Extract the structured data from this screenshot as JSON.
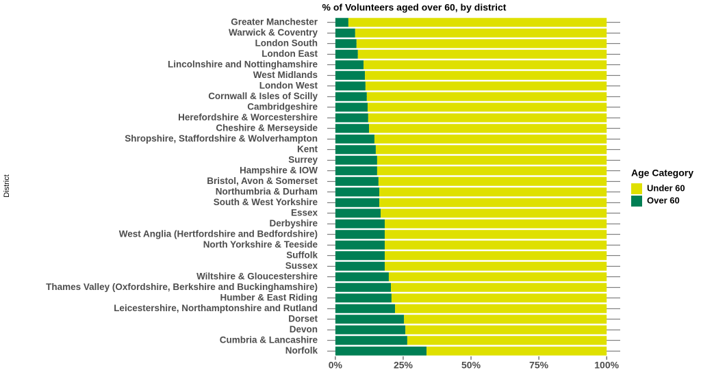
{
  "chart_data": {
    "type": "bar",
    "orientation": "horizontal",
    "stacked": true,
    "title": "% of Volunteers aged over 60, by district",
    "y_label": "District",
    "legend_title": "Age Category",
    "categories": [
      "Greater Manchester",
      "Warwick & Coventry",
      "London South",
      "London East",
      "Lincolnshire and Nottinghamshire",
      "West Midlands",
      "London West",
      "Cornwall & Isles of Scilly",
      "Cambridgeshire",
      "Herefordshire & Worcestershire",
      "Cheshire & Merseyside",
      "Shropshire, Staffordshire & Wolverhampton",
      "Kent",
      "Surrey",
      "Hampshire & IOW",
      "Bristol, Avon & Somerset",
      "Northumbria & Durham",
      "South & West Yorkshire",
      "Essex",
      "Derbyshire",
      "West Anglia (Hertfordshire and Bedfordshire)",
      "North Yorkshire & Teeside",
      "Suffolk",
      "Sussex",
      "Wiltshire & Gloucestershire",
      "Thames Valley (Oxfordshire, Berkshire and Buckinghamshire)",
      "Humber & East Riding",
      "Leicestershire, Northamptonshire and Rutland",
      "Dorset",
      "Devon",
      "Cumbria & Lancashire",
      "Norfolk"
    ],
    "series": [
      {
        "name": "Over 60",
        "color": "#007f54",
        "values": [
          4.8,
          7.3,
          7.8,
          8.3,
          10.4,
          10.9,
          11.1,
          11.6,
          11.9,
          12.1,
          12.4,
          14.4,
          14.9,
          15.4,
          15.4,
          15.9,
          16.2,
          16.2,
          16.7,
          18.2,
          18.2,
          18.2,
          18.2,
          18.2,
          19.7,
          20.5,
          20.7,
          22,
          25.3,
          25.8,
          26.5,
          33.6
        ]
      },
      {
        "name": "Under 60",
        "color": "#dfe000",
        "values": [
          95.2,
          92.7,
          92.2,
          91.7,
          89.6,
          89.1,
          88.9,
          88.4,
          88.1,
          87.9,
          87.6,
          85.6,
          85.1,
          84.6,
          84.6,
          84.1,
          83.8,
          83.8,
          83.3,
          81.8,
          81.8,
          81.8,
          81.8,
          81.8,
          80.3,
          79.5,
          79.3,
          78,
          74.7,
          74.2,
          73.5,
          66.4
        ]
      }
    ],
    "legend_order": [
      1,
      0
    ],
    "xlim": [
      -3,
      105
    ],
    "xticks": [
      {
        "value": 0,
        "label": "0%"
      },
      {
        "value": 25,
        "label": "25%"
      },
      {
        "value": 50,
        "label": "50%"
      },
      {
        "value": 75,
        "label": "75%"
      },
      {
        "value": 100,
        "label": "100%"
      }
    ]
  }
}
